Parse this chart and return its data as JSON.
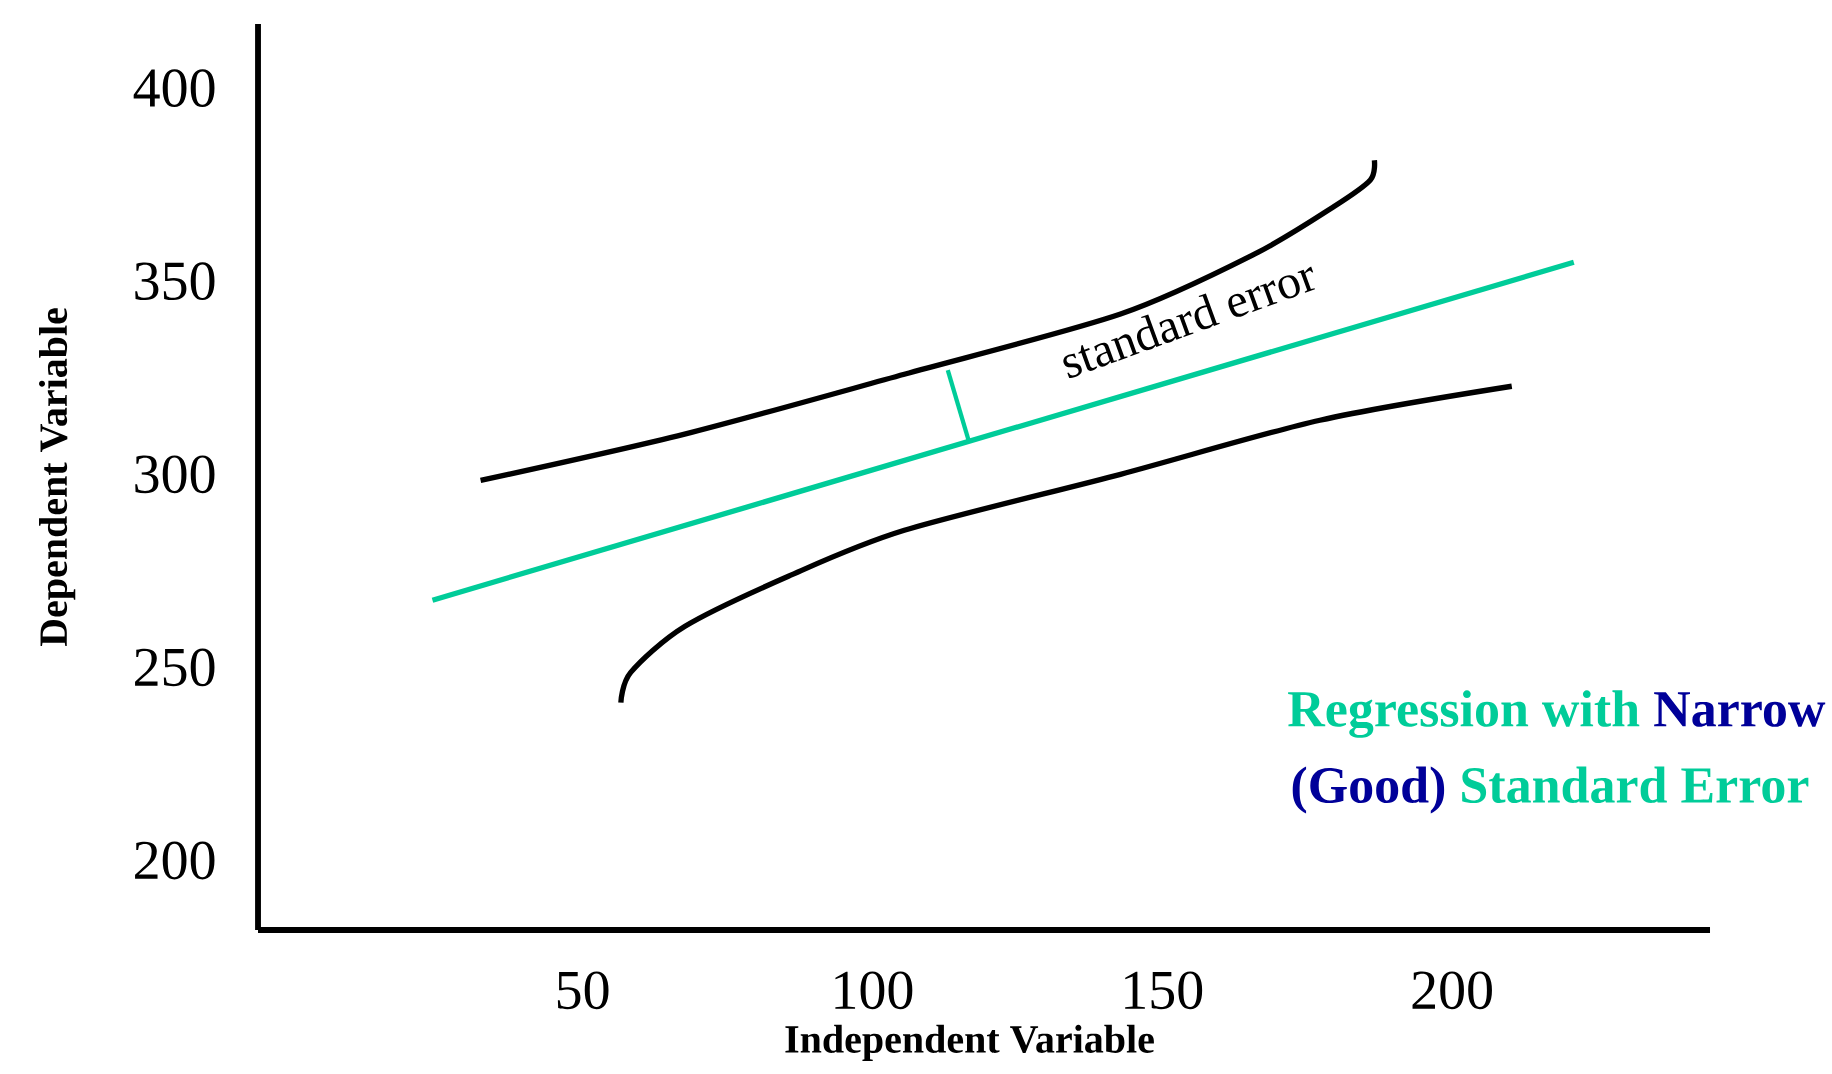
{
  "chart_data": {
    "type": "line",
    "xlabel": "Independent Variable",
    "ylabel": "Dependent Variable",
    "xlim": [
      -6,
      244.5
    ],
    "ylim": [
      182,
      416.6
    ],
    "xticks": [
      50,
      100,
      150,
      200
    ],
    "yticks": [
      200,
      250,
      300,
      350,
      400
    ],
    "series": [
      {
        "color": "#000000",
        "x": [
          32.4,
          67.6,
          105.5,
          142.8,
          165.9,
          179.7,
          185.9,
          186.6
        ],
        "values": [
          298.4,
          310.4,
          325.9,
          341.5,
          357.0,
          369.4,
          376.2,
          381.3
        ]
      },
      {
        "color": "#00cc99",
        "x": [
          24.1,
          221
        ],
        "values": [
          267.4,
          354.9
        ]
      },
      {
        "color": "#000000",
        "x": [
          56.6,
          58.3,
          67.6,
          85.5,
          105.5,
          142.8,
          177.2,
          210.3
        ],
        "values": [
          240.9,
          248.7,
          260.6,
          273.6,
          285.5,
          300.0,
          314.0,
          322.8
        ]
      }
    ],
    "annotations": [
      {
        "text": "standard error",
        "x": 113,
        "y": 327
      },
      "Regression with",
      "Narrow",
      "(Good)",
      "Standard Error"
    ]
  }
}
